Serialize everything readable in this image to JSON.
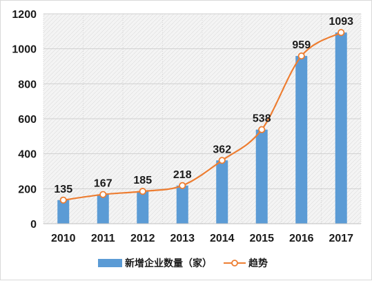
{
  "chart_data": {
    "type": "bar",
    "categories": [
      "2010",
      "2011",
      "2012",
      "2013",
      "2014",
      "2015",
      "2016",
      "2017"
    ],
    "series": [
      {
        "name": "新增企业数量（家）",
        "kind": "bar",
        "color": "#5b9bd5",
        "values": [
          135,
          167,
          185,
          218,
          362,
          538,
          959,
          1093
        ]
      },
      {
        "name": "趋势",
        "kind": "line",
        "smooth": true,
        "marker": "circle",
        "color": "#ed7d31",
        "values": [
          135,
          167,
          185,
          218,
          362,
          538,
          959,
          1093
        ]
      }
    ],
    "data_labels": [
      "135",
      "167",
      "185",
      "218",
      "362",
      "538",
      "959",
      "1093"
    ],
    "ylim": [
      0,
      1200
    ],
    "yticks": [
      "0",
      "200",
      "400",
      "600",
      "800",
      "1000",
      "1200"
    ],
    "grid": true,
    "plot_background": "#f2f2f2",
    "legend_position": "bottom"
  }
}
